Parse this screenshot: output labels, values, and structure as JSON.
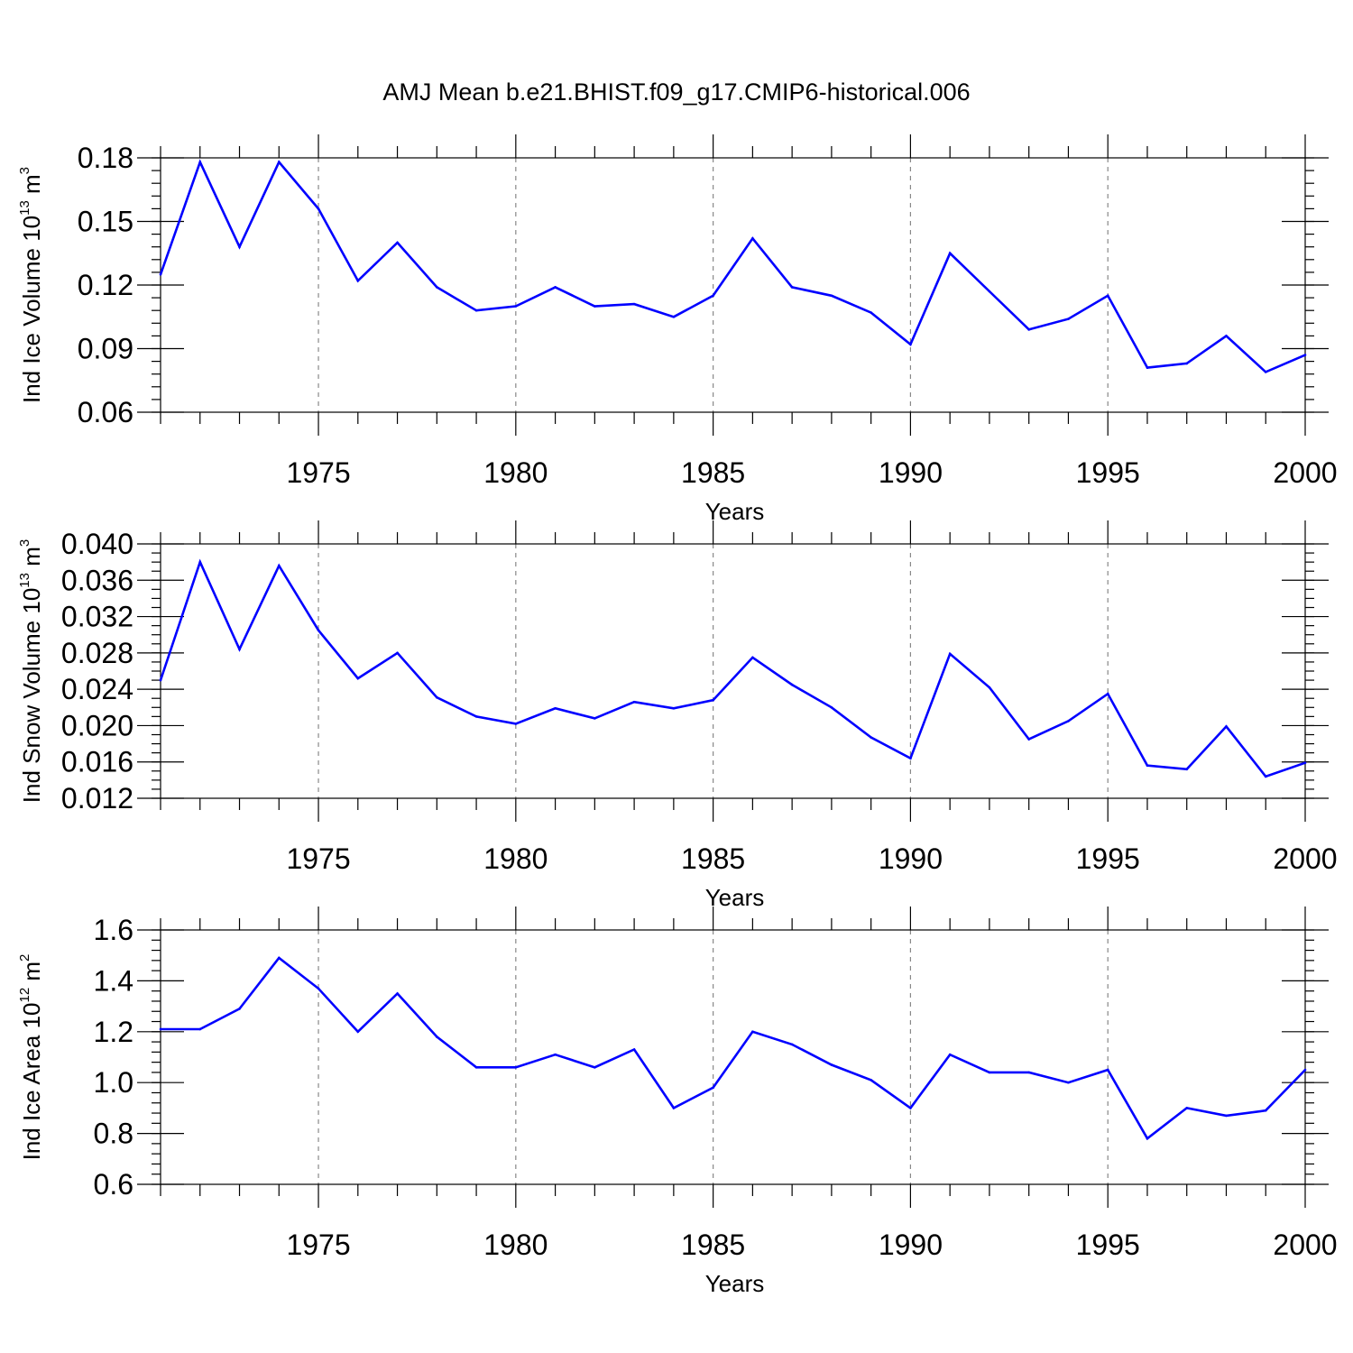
{
  "title": "AMJ Mean b.e21.BHIST.f09_g17.CMIP6-historical.006",
  "chart_data": [
    {
      "type": "line",
      "name": "ice-volume",
      "ylabel": "Ind Ice Volume 10",
      "ylabel_exp": "13",
      "ylabel_unit": " m",
      "ylabel_unit_exp": "3",
      "xlabel": "Years",
      "xlim": [
        1971,
        2000
      ],
      "ylim": [
        0.06,
        0.18
      ],
      "yticks": [
        0.06,
        0.09,
        0.12,
        0.15,
        0.18
      ],
      "ytick_labels": [
        "0.06",
        "0.09",
        "0.12",
        "0.15",
        "0.18"
      ],
      "xticks": [
        1975,
        1980,
        1985,
        1990,
        1995,
        2000
      ],
      "xtick_labels": [
        "1975",
        "1980",
        "1985",
        "1990",
        "1995",
        "2000"
      ],
      "minor_y_step": 0.006,
      "color": "#0000ff",
      "series": [
        {
          "name": "Ind Ice Volume",
          "x": [
            1971,
            1972,
            1973,
            1974,
            1975,
            1976,
            1977,
            1978,
            1979,
            1980,
            1981,
            1982,
            1983,
            1984,
            1985,
            1986,
            1987,
            1988,
            1989,
            1990,
            1991,
            1992,
            1993,
            1994,
            1995,
            1996,
            1997,
            1998,
            1999,
            2000
          ],
          "values": [
            0.125,
            0.178,
            0.138,
            0.178,
            0.156,
            0.122,
            0.14,
            0.119,
            0.108,
            0.11,
            0.119,
            0.11,
            0.111,
            0.105,
            0.115,
            0.142,
            0.119,
            0.115,
            0.107,
            0.092,
            0.135,
            0.117,
            0.099,
            0.104,
            0.115,
            0.081,
            0.083,
            0.096,
            0.079,
            0.087
          ]
        }
      ]
    },
    {
      "type": "line",
      "name": "snow-volume",
      "ylabel": "Ind Snow Volume 10",
      "ylabel_exp": "13",
      "ylabel_unit": " m",
      "ylabel_unit_exp": "3",
      "xlabel": "Years",
      "xlim": [
        1971,
        2000
      ],
      "ylim": [
        0.012,
        0.04
      ],
      "yticks": [
        0.012,
        0.016,
        0.02,
        0.024,
        0.028,
        0.032,
        0.036,
        0.04
      ],
      "ytick_labels": [
        "0.012",
        "0.016",
        "0.020",
        "0.024",
        "0.028",
        "0.032",
        "0.036",
        "0.040"
      ],
      "xticks": [
        1975,
        1980,
        1985,
        1990,
        1995,
        2000
      ],
      "xtick_labels": [
        "1975",
        "1980",
        "1985",
        "1990",
        "1995",
        "2000"
      ],
      "minor_y_step": 0.001,
      "color": "#0000ff",
      "series": [
        {
          "name": "Ind Snow Volume",
          "x": [
            1971,
            1972,
            1973,
            1974,
            1975,
            1976,
            1977,
            1978,
            1979,
            1980,
            1981,
            1982,
            1983,
            1984,
            1985,
            1986,
            1987,
            1988,
            1989,
            1990,
            1991,
            1992,
            1993,
            1994,
            1995,
            1996,
            1997,
            1998,
            1999,
            2000
          ],
          "values": [
            0.025,
            0.038,
            0.0284,
            0.0376,
            0.0305,
            0.0252,
            0.028,
            0.0231,
            0.021,
            0.0202,
            0.0219,
            0.0208,
            0.0226,
            0.0219,
            0.0228,
            0.0275,
            0.0245,
            0.022,
            0.0187,
            0.0164,
            0.0279,
            0.0242,
            0.0185,
            0.0205,
            0.0235,
            0.0156,
            0.0152,
            0.0199,
            0.0144,
            0.0159
          ]
        }
      ]
    },
    {
      "type": "line",
      "name": "ice-area",
      "ylabel": "Ind Ice Area 10",
      "ylabel_exp": "12",
      "ylabel_unit": " m",
      "ylabel_unit_exp": "2",
      "xlabel": "Years",
      "xlim": [
        1971,
        2000
      ],
      "ylim": [
        0.6,
        1.6
      ],
      "yticks": [
        0.6,
        0.8,
        1.0,
        1.2,
        1.4,
        1.6
      ],
      "ytick_labels": [
        "0.6",
        "0.8",
        "1.0",
        "1.2",
        "1.4",
        "1.6"
      ],
      "xticks": [
        1975,
        1980,
        1985,
        1990,
        1995,
        2000
      ],
      "xtick_labels": [
        "1975",
        "1980",
        "1985",
        "1990",
        "1995",
        "2000"
      ],
      "minor_y_step": 0.04,
      "color": "#0000ff",
      "series": [
        {
          "name": "Ind Ice Area",
          "x": [
            1971,
            1972,
            1973,
            1974,
            1975,
            1976,
            1977,
            1978,
            1979,
            1980,
            1981,
            1982,
            1983,
            1984,
            1985,
            1986,
            1987,
            1988,
            1989,
            1990,
            1991,
            1992,
            1993,
            1994,
            1995,
            1996,
            1997,
            1998,
            1999,
            2000
          ],
          "values": [
            1.21,
            1.21,
            1.29,
            1.49,
            1.37,
            1.2,
            1.35,
            1.18,
            1.06,
            1.06,
            1.11,
            1.06,
            1.13,
            0.9,
            0.98,
            1.2,
            1.15,
            1.07,
            1.01,
            0.9,
            1.11,
            1.04,
            1.04,
            1.0,
            1.05,
            0.78,
            0.9,
            0.87,
            0.89,
            1.05
          ]
        }
      ]
    }
  ]
}
